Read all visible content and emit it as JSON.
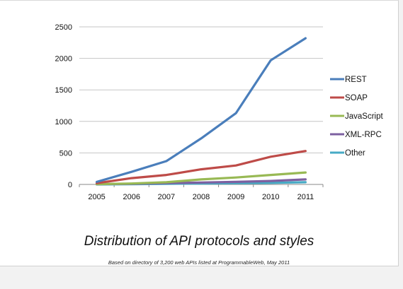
{
  "caption": "Distribution of API protocols and styles",
  "source_note": "Based on directory of 3,200 web APIs listed at ProgrammableWeb, May 2011",
  "chart_data": {
    "type": "line",
    "title": "",
    "xlabel": "",
    "ylabel": "",
    "x": [
      "2005",
      "2006",
      "2007",
      "2008",
      "2009",
      "2010",
      "2011"
    ],
    "ylim": [
      0,
      2500
    ],
    "yticks": [
      0,
      500,
      1000,
      1500,
      2000,
      2500
    ],
    "grid": "horizontal",
    "legend_placement": "right",
    "series": [
      {
        "name": "REST",
        "color": "#4a7ebb",
        "values": [
          40,
          200,
          370,
          730,
          1130,
          1970,
          2320
        ]
      },
      {
        "name": "SOAP",
        "color": "#be4b48",
        "values": [
          20,
          100,
          150,
          240,
          300,
          440,
          530
        ]
      },
      {
        "name": "JavaScript",
        "color": "#98b954",
        "values": [
          5,
          15,
          35,
          80,
          110,
          150,
          190
        ]
      },
      {
        "name": "XML-RPC",
        "color": "#7d60a0",
        "values": [
          5,
          10,
          20,
          30,
          40,
          55,
          80
        ]
      },
      {
        "name": "Other",
        "color": "#46aac5",
        "values": [
          0,
          5,
          10,
          15,
          20,
          25,
          35
        ]
      }
    ]
  }
}
